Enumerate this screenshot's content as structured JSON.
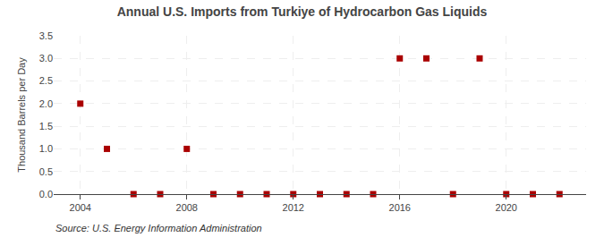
{
  "chart_data": {
    "type": "scatter",
    "title": "Annual U.S. Imports from Turkiye of Hydrocarbon Gas Liquids",
    "ylabel": "Thousand Barrels per Day",
    "annotations": [
      "Source: U.S. Energy Information Administration"
    ],
    "x": [
      2004,
      2005,
      2006,
      2007,
      2008,
      2009,
      2010,
      2011,
      2012,
      2013,
      2014,
      2015,
      2016,
      2017,
      2018,
      2019,
      2020,
      2021,
      2022
    ],
    "values": [
      2.0,
      1.0,
      0.0,
      0.0,
      1.0,
      0.0,
      0.0,
      0.0,
      0.0,
      0.0,
      0.0,
      0.0,
      3.0,
      3.0,
      0.0,
      3.0,
      0.0,
      0.0,
      0.0
    ],
    "color": "#aa0000",
    "marker": "square",
    "xlim": [
      2003.0,
      2023.0
    ],
    "xticks": [
      2004,
      2008,
      2012,
      2016,
      2020
    ],
    "ylim": [
      0.0,
      3.5
    ],
    "yticks": [
      {
        "value": 0.0,
        "label": "0.0"
      },
      0.5,
      {
        "value": 1.0,
        "label": "1.0"
      },
      1.5,
      {
        "value": 2.0,
        "label": "2.0"
      },
      2.5,
      {
        "value": 3.0,
        "label": "3.0"
      },
      3.5
    ],
    "grid": true
  }
}
